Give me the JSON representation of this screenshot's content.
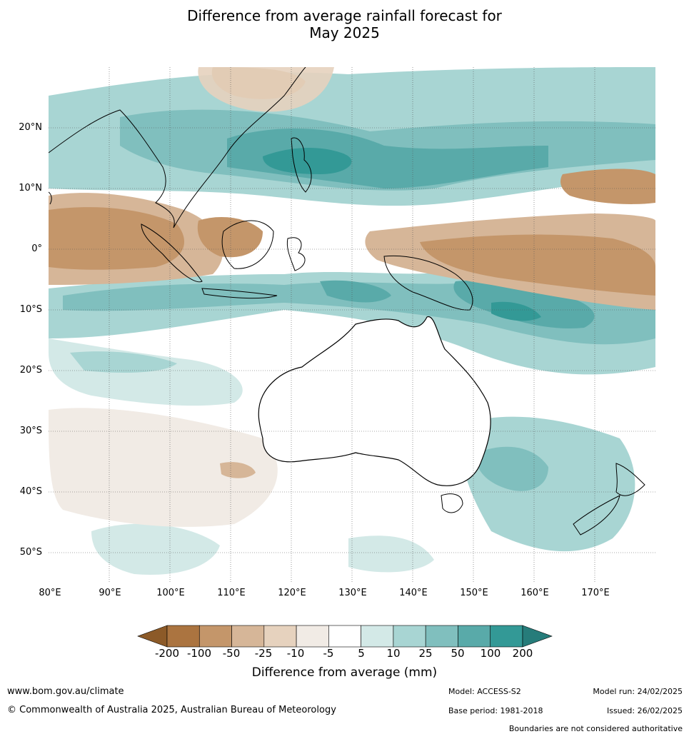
{
  "title": {
    "line1": "Difference from average rainfall forecast for",
    "line2": "May 2025"
  },
  "map": {
    "lat_labels": [
      "20°N",
      "10°N",
      "0°",
      "10°S",
      "20°S",
      "30°S",
      "40°S",
      "50°S"
    ],
    "lon_labels": [
      "80°E",
      "90°E",
      "100°E",
      "110°E",
      "120°E",
      "130°E",
      "140°E",
      "150°E",
      "160°E",
      "170°E"
    ],
    "colors": {
      "land_outline": "#000000",
      "boundaries": "#808080",
      "grid": "#555555"
    }
  },
  "legend": {
    "title": "Difference from average (mm)",
    "ticks": [
      "-200",
      "-100",
      "-50",
      "-25",
      "-10",
      "-5",
      "5",
      "10",
      "25",
      "50",
      "100",
      "200"
    ],
    "colors": [
      "#8c5a28",
      "#ab7440",
      "#c4966a",
      "#d6b698",
      "#e6d2be",
      "#f1ebe5",
      "#ffffff",
      "#d3e9e7",
      "#a8d5d3",
      "#80bfbe",
      "#59aaa9",
      "#339996",
      "#267c7a"
    ]
  },
  "footer": {
    "website": "www.bom.gov.au/climate",
    "copyright": "© Commonwealth of Australia 2025, Australian Bureau of Meteorology",
    "model": "Model: ACCESS-S2",
    "base_period": "Base period: 1981-2018",
    "model_run": "Model run: 24/02/2025",
    "issued": "Issued: 26/02/2025",
    "disclaimer": "Boundaries are not considered authoritative"
  }
}
